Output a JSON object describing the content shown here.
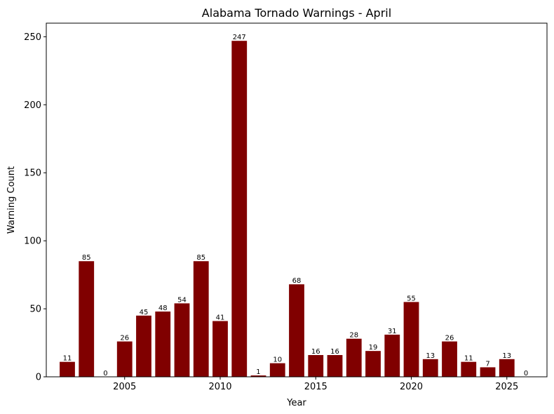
{
  "chart_data": {
    "type": "bar",
    "title": "Alabama Tornado Warnings - April",
    "xlabel": "Year",
    "ylabel": "Warning Count",
    "x": [
      2002,
      2003,
      2004,
      2005,
      2006,
      2007,
      2008,
      2009,
      2010,
      2011,
      2012,
      2013,
      2014,
      2015,
      2016,
      2017,
      2018,
      2019,
      2020,
      2021,
      2022,
      2023,
      2024,
      2025,
      2026
    ],
    "values": [
      11,
      85,
      0,
      26,
      45,
      48,
      54,
      85,
      41,
      247,
      1,
      10,
      68,
      16,
      16,
      28,
      19,
      31,
      55,
      13,
      26,
      11,
      7,
      13,
      0
    ],
    "xticks": [
      2005,
      2010,
      2015,
      2020,
      2025
    ],
    "yticks": [
      0,
      50,
      100,
      150,
      200,
      250
    ],
    "xlim": [
      2000.9,
      2027.1
    ],
    "ylim": [
      0,
      260
    ],
    "bar_color": "#800000",
    "grid": false,
    "legend": "none"
  }
}
